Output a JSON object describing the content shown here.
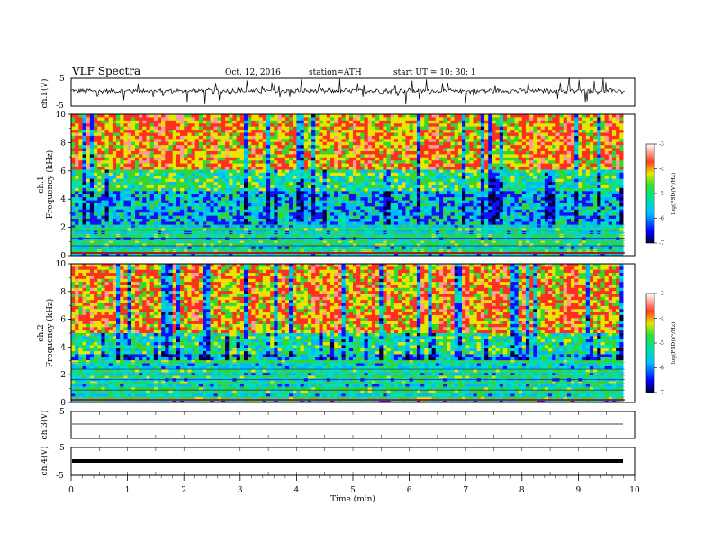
{
  "header": {
    "title": "VLF  Spectra",
    "date": "Oct. 12, 2016",
    "station": "station=ATH",
    "start": "start  UT  =    10: 30: 1"
  },
  "chart_data": [
    {
      "type": "line",
      "panel": "ch1-waveform",
      "ylabel": "ch.1(V)",
      "ylim": [
        -5,
        5
      ],
      "yticks": [
        "5",
        "-5"
      ],
      "series": [
        {
          "x": [
            0,
            0.5,
            1,
            1.5,
            2,
            2.5,
            3,
            3.5,
            4,
            4.5,
            5,
            5.5,
            6,
            6.5,
            7,
            7.5,
            8,
            8.5,
            9,
            9.5,
            9.8
          ],
          "y": [
            0,
            0.4,
            -0.2,
            0.3,
            0.6,
            -0.3,
            0.2,
            0.5,
            -0.4,
            0.1,
            0.3,
            -0.2,
            0.4,
            0.2,
            -0.3,
            0.5,
            0,
            0.3,
            -0.1,
            0.2,
            0
          ]
        }
      ]
    },
    {
      "type": "heatmap",
      "panel": "ch1-spectrogram",
      "ylabel": "ch.1\nFrequency  (kHz)",
      "ylim": [
        0,
        10
      ],
      "yticks": [
        "0",
        "2",
        "4",
        "6",
        "8",
        "10"
      ],
      "colorbar": {
        "label": "log(PSD(V^2/Hz)",
        "ticks": [
          "-3",
          "-4",
          "-5",
          "-6",
          "-7"
        ],
        "range": [
          -7,
          -3
        ]
      },
      "description_values": {
        "high_band_kHz": [
          6,
          10
        ],
        "high_band_logPSD": -4,
        "low_band_kHz": [
          0,
          2
        ],
        "low_band_logPSD": -5.5,
        "mid_band_logPSD": -6.5
      }
    },
    {
      "type": "heatmap",
      "panel": "ch2-spectrogram",
      "ylabel": "ch.2\nFrequency  (kHz)",
      "ylim": [
        0,
        10
      ],
      "yticks": [
        "0",
        "2",
        "4",
        "6",
        "8",
        "10"
      ],
      "colorbar": {
        "label": "log(PSD(V^2/Hz)",
        "ticks": [
          "-3",
          "-4",
          "-5",
          "-6",
          "-7"
        ],
        "range": [
          -7,
          -3
        ]
      },
      "description_values": {
        "high_band_kHz": [
          5,
          10
        ],
        "high_band_logPSD": -4,
        "low_band_kHz": [
          0,
          3
        ],
        "low_band_logPSD": -5.5,
        "mid_band_logPSD": -6.5
      }
    },
    {
      "type": "line",
      "panel": "ch3-waveform",
      "ylabel": "ch.3(V)",
      "ylim": [
        -5,
        5
      ],
      "yticks": [
        "5"
      ],
      "series": [
        {
          "x": [
            0,
            9.8
          ],
          "y": [
            0,
            0
          ]
        }
      ]
    },
    {
      "type": "line",
      "panel": "ch4-waveform",
      "ylabel": "ch.4(V)",
      "ylim": [
        -5,
        5
      ],
      "yticks": [
        "5",
        "-5"
      ],
      "series": [
        {
          "x": [
            0,
            9.8
          ],
          "y": [
            0,
            0
          ]
        }
      ]
    }
  ],
  "xaxis": {
    "label": "Time  (min)",
    "ticks": [
      "0",
      "1",
      "2",
      "3",
      "4",
      "5",
      "6",
      "7",
      "8",
      "9",
      "10"
    ],
    "xlim": [
      0,
      10
    ]
  },
  "colors": {
    "red": "#e8261c",
    "yellow": "#f2e600",
    "green": "#33d633",
    "cyan": "#00e0d8",
    "blue": "#1a1aff",
    "navy": "#00006a",
    "black": "#000000"
  }
}
